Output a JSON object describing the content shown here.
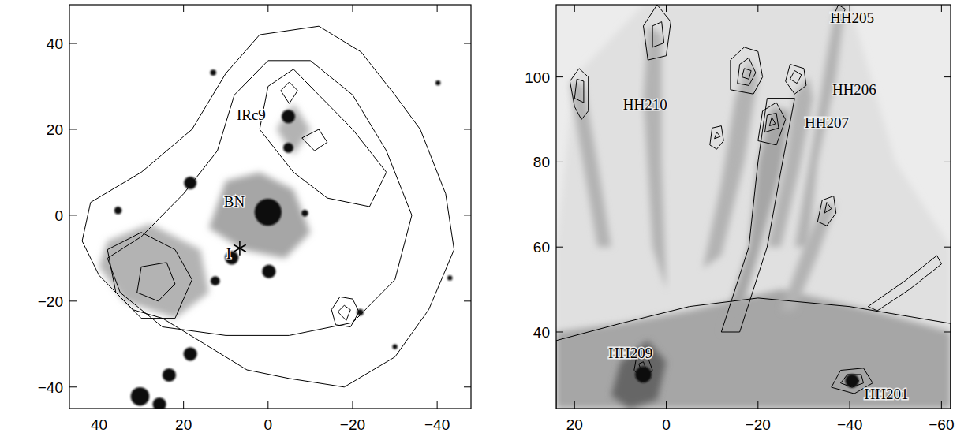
{
  "chart_data": [
    {
      "type": "contour_image",
      "xlim": [
        47,
        -48
      ],
      "ylim": [
        -45,
        49
      ],
      "xticks": [
        40,
        20,
        0,
        {
          "value": -20,
          "label": "−20"
        },
        {
          "value": -40,
          "label": "−40"
        }
      ],
      "yticks": [
        {
          "value": -40,
          "label": "−40"
        },
        {
          "value": -20,
          "label": "−20"
        },
        0,
        20,
        40
      ],
      "annotations": [
        {
          "text": "IRc9",
          "x": 4,
          "y": 23.5
        },
        {
          "text": "BN",
          "x": 8,
          "y": 3.3
        },
        {
          "text": "I",
          "x": 9.3,
          "y": -8.9
        }
      ],
      "emission": [
        {
          "level": 0.35,
          "x": [
            14,
            10,
            2,
            -6,
            -10,
            -4,
            6
          ],
          "y": [
            -3,
            8,
            10,
            6,
            -4,
            -10,
            -8
          ]
        },
        {
          "level": 0.3,
          "x": [
            38,
            28,
            16,
            14,
            22,
            34,
            40
          ],
          "y": [
            -6,
            -2,
            -8,
            -18,
            -24,
            -20,
            -12
          ]
        },
        {
          "level": 0.3,
          "x": [
            -2,
            -6,
            -10,
            -6
          ],
          "y": [
            20,
            26,
            20,
            14
          ]
        }
      ],
      "points": [
        {
          "marker": "circle",
          "x": [
            0,
            -4.8,
            -4.8,
            8.6,
            -0.2,
            18.4,
            12.5,
            18.4,
            23.4,
            30.3,
            25.7,
            35.5,
            -8.7,
            -40.2,
            -43,
            -30,
            -21.8,
            13
          ],
          "y": [
            0.7,
            23,
            15.7,
            -9.9,
            -13.1,
            7.5,
            -15.3,
            -32.3,
            -37.2,
            -42.2,
            -44,
            1.1,
            0.5,
            30.8,
            -14.6,
            -30.6,
            -22.6,
            33.2
          ],
          "size": [
            3.2,
            1.6,
            1.2,
            1.6,
            1.6,
            1.5,
            1.1,
            1.6,
            1.6,
            2.2,
            1.6,
            0.9,
            0.8,
            0.6,
            0.6,
            0.6,
            0.8,
            0.7
          ]
        },
        {
          "marker": "star",
          "x": [
            6.7
          ],
          "y": [
            -7.7
          ]
        }
      ],
      "contours": [
        {
          "x": [
            44,
            42,
            30,
            18,
            10,
            2,
            -12,
            -22,
            -30,
            -36,
            -42,
            -44,
            -38,
            -30,
            -18,
            -5,
            5,
            15,
            25,
            32,
            40
          ],
          "y": [
            -6,
            3,
            10,
            20,
            33,
            42,
            44,
            38,
            28,
            20,
            5,
            -8,
            -22,
            -33,
            -40,
            -38,
            -36,
            -30,
            -24,
            -22,
            -14
          ]
        },
        {
          "x": [
            38,
            30,
            20,
            12,
            8,
            0,
            -10,
            -20,
            -28,
            -34,
            -30,
            -20,
            -5,
            10,
            25,
            35
          ],
          "y": [
            -10,
            -5,
            5,
            15,
            28,
            36,
            36,
            28,
            15,
            0,
            -15,
            -25,
            -28,
            -28,
            -26,
            -18
          ]
        },
        {
          "x": [
            2,
            0,
            -6,
            -12,
            -20,
            -28,
            -24,
            -14,
            -6
          ],
          "y": [
            20,
            30,
            34,
            28,
            20,
            10,
            2,
            4,
            10
          ]
        },
        {
          "x": [
            38,
            30,
            22,
            18,
            22,
            30,
            36
          ],
          "y": [
            -8,
            -4,
            -8,
            -15,
            -24,
            -24,
            -18
          ]
        },
        {
          "x": [
            30,
            24,
            22,
            26,
            31
          ],
          "y": [
            -12,
            -11,
            -16,
            -20,
            -18
          ]
        },
        {
          "x": [
            -15,
            -17,
            -20,
            -21.5,
            -19.5,
            -16
          ],
          "y": [
            -22,
            -19,
            -19.5,
            -22.5,
            -26,
            -25.5
          ]
        },
        {
          "x": [
            -16.5,
            -18,
            -19.5,
            -18.5
          ],
          "y": [
            -22.5,
            -21,
            -22,
            -24.5
          ]
        },
        {
          "x": [
            -3,
            -5,
            -7,
            -5
          ],
          "y": [
            29,
            31,
            29,
            26
          ]
        },
        {
          "x": [
            -8,
            -12,
            -14,
            -11
          ],
          "y": [
            18,
            20,
            17,
            15
          ]
        }
      ]
    },
    {
      "type": "contour_image",
      "xlim": [
        24,
        -62
      ],
      "ylim": [
        22,
        117
      ],
      "xticks": [
        20,
        0,
        {
          "value": -20,
          "label": "−20"
        },
        {
          "value": -40,
          "label": "−40"
        },
        {
          "value": -60,
          "label": "−60"
        }
      ],
      "yticks": [
        40,
        60,
        80,
        100
      ],
      "annotations": [
        {
          "text": "HH205",
          "x": -40.5,
          "y": 114
        },
        {
          "text": "HH206",
          "x": -41,
          "y": 97.1
        },
        {
          "text": "HH207",
          "x": -35,
          "y": 89.3
        },
        {
          "text": "HH210",
          "x": 4.6,
          "y": 93.6
        },
        {
          "text": "HH209",
          "x": 7.8,
          "y": 35.2
        },
        {
          "text": "HH201",
          "x": -48,
          "y": 25.5
        }
      ],
      "emission": [
        {
          "level": 0.12,
          "x": [
            24,
            20,
            5,
            -20,
            -40,
            -50,
            -62,
            -62,
            24
          ],
          "y": [
            60,
            100,
            117,
            117,
            117,
            80,
            60,
            22,
            22
          ]
        },
        {
          "level": 0.35,
          "x": [
            24,
            24,
            10,
            -5,
            -25,
            -45,
            -62,
            -62
          ],
          "y": [
            22,
            40,
            42,
            45,
            50,
            45,
            40,
            22
          ]
        },
        {
          "level": 0.6,
          "x": [
            12,
            10,
            4,
            0,
            2,
            8
          ],
          "y": [
            25,
            33,
            38,
            33,
            24,
            22
          ]
        },
        {
          "level": 0.35,
          "x": [
            -12,
            -18,
            -20,
            -23,
            -27,
            -25,
            -20,
            -15
          ],
          "y": [
            40,
            60,
            80,
            93,
            92,
            78,
            58,
            40
          ]
        },
        {
          "level": 0.3,
          "x": [
            -22,
            -26,
            -28,
            -31,
            -32,
            -29,
            -25
          ],
          "y": [
            60,
            80,
            96,
            100,
            95,
            78,
            60
          ]
        },
        {
          "level": 0.3,
          "x": [
            -28,
            -32,
            -35,
            -37,
            -39,
            -37,
            -33,
            -31
          ],
          "y": [
            60,
            85,
            105,
            117,
            117,
            100,
            80,
            60
          ]
        },
        {
          "level": 0.3,
          "x": [
            -8,
            -12,
            -15,
            -18,
            -20,
            -17,
            -12
          ],
          "y": [
            55,
            75,
            95,
            104,
            100,
            80,
            58
          ]
        },
        {
          "level": 0.3,
          "x": [
            0,
            1,
            1,
            4,
            5,
            3
          ],
          "y": [
            50,
            80,
            110,
            112,
            95,
            60
          ]
        },
        {
          "level": 0.3,
          "x": [
            12,
            15,
            18,
            21,
            19,
            15
          ],
          "y": [
            60,
            80,
            98,
            99,
            85,
            60
          ]
        },
        {
          "level": 0.3,
          "x": [
            -25,
            -30,
            -34,
            -37,
            -33,
            -28
          ],
          "y": [
            45,
            60,
            70,
            70,
            58,
            45
          ]
        }
      ],
      "points": [
        {
          "marker": "circle",
          "x": [
            5,
            -40.5
          ],
          "y": [
            30,
            28.5
          ],
          "size": [
            1.8,
            1.5
          ]
        }
      ],
      "contours": [
        {
          "x": [
            -36,
            -37.5,
            -39,
            -38
          ],
          "y": [
            113,
            117,
            116,
            112.5
          ]
        },
        {
          "x": [
            -26,
            -27,
            -30,
            -30.5,
            -28
          ],
          "y": [
            99,
            103,
            102,
            98,
            96
          ]
        },
        {
          "x": [
            -27,
            -28,
            -29.5,
            -28.5
          ],
          "y": [
            99.5,
            101.5,
            100.5,
            98.5
          ]
        },
        {
          "x": [
            -14,
            -14,
            -17,
            -20,
            -21,
            -19
          ],
          "y": [
            97,
            104,
            107,
            106,
            100,
            96
          ]
        },
        {
          "x": [
            -15.5,
            -16,
            -18,
            -19.5,
            -18
          ],
          "y": [
            98.5,
            103,
            104.5,
            101,
            98
          ]
        },
        {
          "x": [
            -16.5,
            -17,
            -18.5,
            -18
          ],
          "y": [
            100,
            102,
            101.5,
            99.5
          ]
        },
        {
          "x": [
            4,
            5,
            2,
            -1,
            0
          ],
          "y": [
            104,
            112,
            117,
            113,
            105
          ]
        },
        {
          "x": [
            3,
            3,
            1,
            0.5
          ],
          "y": [
            107,
            112,
            113,
            108
          ]
        },
        {
          "x": [
            -20,
            -21,
            -24,
            -26,
            -24
          ],
          "y": [
            85,
            92,
            94,
            90,
            84
          ]
        },
        {
          "x": [
            -21.5,
            -22,
            -24,
            -24.5
          ],
          "y": [
            87,
            91,
            91.5,
            88
          ]
        },
        {
          "x": [
            -22.5,
            -23,
            -23.8
          ],
          "y": [
            88.5,
            90.5,
            89
          ]
        },
        {
          "x": [
            -9.5,
            -10,
            -12,
            -12.5,
            -11
          ],
          "y": [
            84,
            88,
            88.5,
            85,
            83
          ]
        },
        {
          "x": [
            -10.5,
            -11,
            -11.8
          ],
          "y": [
            85.5,
            87,
            86
          ]
        },
        {
          "x": [
            -33,
            -34,
            -36.5,
            -37,
            -35
          ],
          "y": [
            66,
            71,
            72,
            68,
            65
          ]
        },
        {
          "x": [
            -34.5,
            -35,
            -36
          ],
          "y": [
            68,
            70.5,
            69
          ]
        },
        {
          "x": [
            -36,
            -38,
            -43,
            -45,
            -41
          ],
          "y": [
            27,
            31,
            31.5,
            28,
            25.5
          ]
        },
        {
          "x": [
            -38,
            -39.5,
            -42.5,
            -43,
            -40.5
          ],
          "y": [
            28,
            30,
            30,
            28,
            27
          ]
        },
        {
          "x": [
            -39.5,
            -41,
            -42
          ],
          "y": [
            28.5,
            29.5,
            28.5
          ]
        },
        {
          "x": [
            3,
            4,
            6.5,
            7,
            5
          ],
          "y": [
            31,
            34,
            34,
            31,
            29
          ]
        },
        {
          "x": [
            4.5,
            5,
            6,
            5.5
          ],
          "y": [
            31.5,
            33,
            32.5,
            31
          ]
        },
        {
          "x": [
            17,
            17,
            19,
            21,
            20,
            18.5
          ],
          "y": [
            92,
            100,
            102,
            99,
            93,
            90
          ]
        },
        {
          "x": [
            18,
            18,
            19.5,
            20
          ],
          "y": [
            94,
            99,
            99.5,
            95
          ]
        },
        {
          "x": [
            -12,
            -18,
            -20,
            -22,
            -28,
            -25,
            -22,
            -16
          ],
          "y": [
            40,
            60,
            80,
            95,
            95,
            78,
            60,
            40
          ]
        },
        {
          "x": [
            24,
            10,
            -5,
            -20,
            -40,
            -62,
            -62,
            24
          ],
          "y": [
            38,
            42,
            46,
            48,
            46,
            42,
            20,
            20
          ]
        },
        {
          "x": [
            -44,
            -52,
            -59,
            -60,
            -53,
            -46
          ],
          "y": [
            46,
            52,
            58,
            56,
            50,
            45
          ]
        }
      ]
    }
  ]
}
